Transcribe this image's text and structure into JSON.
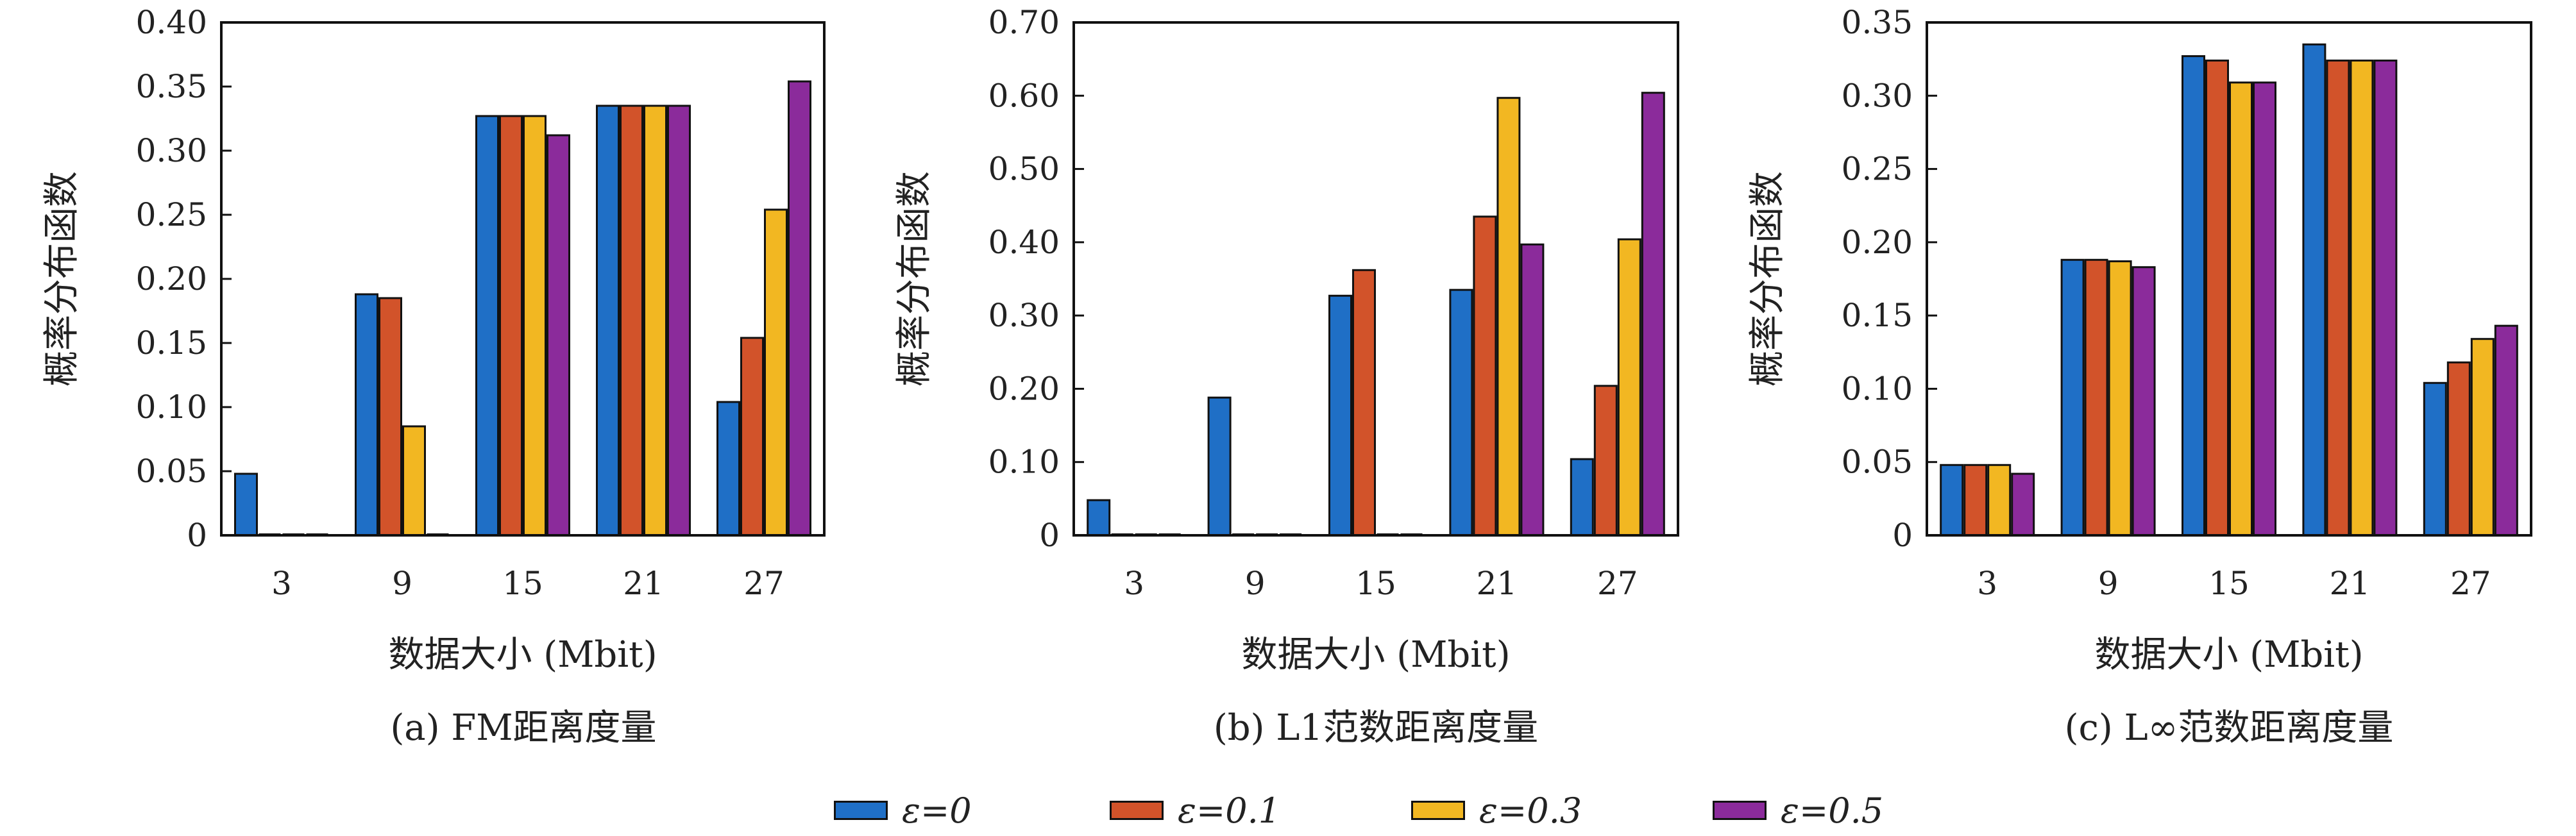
{
  "colors": {
    "series": [
      "#1f6fc6",
      "#d2532a",
      "#f2b722",
      "#8b2b9b"
    ]
  },
  "legend": {
    "items": [
      "ε=0",
      "ε=0.1",
      "ε=0.3",
      "ε=0.5"
    ]
  },
  "chart_data": [
    {
      "type": "bar",
      "caption": "(a) FM距离度量",
      "xlabel": "数据大小 (Mbit)",
      "ylabel": "概率分布函数",
      "categories": [
        "3",
        "9",
        "15",
        "21",
        "27"
      ],
      "ylim": [
        0,
        0.4
      ],
      "yticks": [
        0,
        0.05,
        0.1,
        0.15,
        0.2,
        0.25,
        0.3,
        0.35,
        0.4
      ],
      "ytick_labels": [
        "0",
        "0.05",
        "0.10",
        "0.15",
        "0.20",
        "0.25",
        "0.30",
        "0.35",
        "0.40"
      ],
      "series": [
        {
          "name": "ε=0",
          "values": [
            0.048,
            0.188,
            0.327,
            0.335,
            0.104
          ]
        },
        {
          "name": "ε=0.1",
          "values": [
            0,
            0.185,
            0.327,
            0.335,
            0.154
          ]
        },
        {
          "name": "ε=0.3",
          "values": [
            0,
            0.085,
            0.327,
            0.335,
            0.254
          ]
        },
        {
          "name": "ε=0.5",
          "values": [
            0,
            0,
            0.312,
            0.335,
            0.354
          ]
        }
      ]
    },
    {
      "type": "bar",
      "caption": "(b) L1范数距离度量",
      "xlabel": "数据大小 (Mbit)",
      "ylabel": "概率分布函数",
      "categories": [
        "3",
        "9",
        "15",
        "21",
        "27"
      ],
      "ylim": [
        0,
        0.7
      ],
      "yticks": [
        0,
        0.1,
        0.2,
        0.3,
        0.4,
        0.5,
        0.6,
        0.7
      ],
      "ytick_labels": [
        "0",
        "0.10",
        "0.20",
        "0.30",
        "0.40",
        "0.50",
        "0.60",
        "0.70"
      ],
      "series": [
        {
          "name": "ε=0",
          "values": [
            0.048,
            0.188,
            0.327,
            0.335,
            0.104
          ]
        },
        {
          "name": "ε=0.1",
          "values": [
            0,
            0,
            0.362,
            0.435,
            0.204
          ]
        },
        {
          "name": "ε=0.3",
          "values": [
            0,
            0,
            0,
            0.597,
            0.404
          ]
        },
        {
          "name": "ε=0.5",
          "values": [
            0,
            0,
            0,
            0.397,
            0.604
          ]
        }
      ]
    },
    {
      "type": "bar",
      "caption": "(c) L∞范数距离度量",
      "xlabel": "数据大小 (Mbit)",
      "ylabel": "概率分布函数",
      "categories": [
        "3",
        "9",
        "15",
        "21",
        "27"
      ],
      "ylim": [
        0,
        0.35
      ],
      "yticks": [
        0,
        0.05,
        0.1,
        0.15,
        0.2,
        0.25,
        0.3,
        0.35
      ],
      "ytick_labels": [
        "0",
        "0.05",
        "0.10",
        "0.15",
        "0.20",
        "0.25",
        "0.30",
        "0.35"
      ],
      "series": [
        {
          "name": "ε=0",
          "values": [
            0.048,
            0.188,
            0.327,
            0.335,
            0.104
          ]
        },
        {
          "name": "ε=0.1",
          "values": [
            0.048,
            0.188,
            0.324,
            0.324,
            0.118
          ]
        },
        {
          "name": "ε=0.3",
          "values": [
            0.048,
            0.187,
            0.309,
            0.324,
            0.134
          ]
        },
        {
          "name": "ε=0.5",
          "values": [
            0.042,
            0.183,
            0.309,
            0.324,
            0.143
          ]
        }
      ]
    }
  ]
}
